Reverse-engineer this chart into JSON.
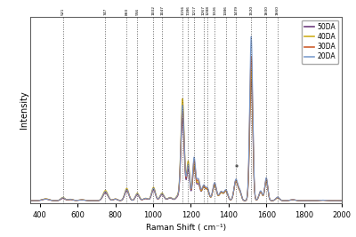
{
  "xlabel": "Raman Shift ( cm⁻¹)",
  "ylabel": "Intensity",
  "xlim": [
    350,
    2000
  ],
  "legend_labels": [
    "20DA",
    "30DA",
    "40DA",
    "50DA"
  ],
  "legend_colors": [
    "#7799cc",
    "#cc5522",
    "#ccaa11",
    "#663377"
  ],
  "dashed_lines": [
    521,
    747,
    860,
    916,
    1002,
    1047,
    1156,
    1186,
    1217,
    1267,
    1288,
    1326,
    1386,
    1439,
    1520,
    1600,
    1660
  ],
  "background_color": "#ffffff",
  "plot_bg_color": "#ffffff",
  "peak_defs": [
    [
      430,
      0.01,
      0.01,
      0.012,
      0.009,
      18
    ],
    [
      521,
      0.018,
      0.016,
      0.02,
      0.014,
      11
    ],
    [
      560,
      0.008,
      0.007,
      0.009,
      0.007,
      14
    ],
    [
      620,
      0.005,
      0.005,
      0.006,
      0.005,
      16
    ],
    [
      747,
      0.055,
      0.052,
      0.062,
      0.048,
      13
    ],
    [
      800,
      0.01,
      0.01,
      0.011,
      0.009,
      11
    ],
    [
      860,
      0.068,
      0.065,
      0.075,
      0.06,
      11
    ],
    [
      916,
      0.042,
      0.04,
      0.046,
      0.037,
      10
    ],
    [
      960,
      0.014,
      0.013,
      0.015,
      0.012,
      13
    ],
    [
      1002,
      0.075,
      0.072,
      0.082,
      0.066,
      10
    ],
    [
      1047,
      0.042,
      0.04,
      0.046,
      0.037,
      11
    ],
    [
      1090,
      0.018,
      0.017,
      0.02,
      0.016,
      13
    ],
    [
      1130,
      0.025,
      0.023,
      0.028,
      0.021,
      10
    ],
    [
      1156,
      0.58,
      0.55,
      0.62,
      0.5,
      9
    ],
    [
      1186,
      0.22,
      0.21,
      0.24,
      0.19,
      8
    ],
    [
      1217,
      0.26,
      0.24,
      0.22,
      0.2,
      8
    ],
    [
      1240,
      0.13,
      0.12,
      0.11,
      0.1,
      9
    ],
    [
      1267,
      0.09,
      0.085,
      0.08,
      0.078,
      9
    ],
    [
      1288,
      0.075,
      0.07,
      0.065,
      0.065,
      9
    ],
    [
      1326,
      0.11,
      0.105,
      0.095,
      0.092,
      10
    ],
    [
      1360,
      0.055,
      0.052,
      0.048,
      0.048,
      10
    ],
    [
      1386,
      0.065,
      0.062,
      0.058,
      0.056,
      10
    ],
    [
      1439,
      0.13,
      0.125,
      0.12,
      0.118,
      10
    ],
    [
      1460,
      0.055,
      0.052,
      0.048,
      0.046,
      8
    ],
    [
      1520,
      1.0,
      0.88,
      0.8,
      0.74,
      8
    ],
    [
      1570,
      0.06,
      0.057,
      0.053,
      0.052,
      9
    ],
    [
      1600,
      0.14,
      0.135,
      0.125,
      0.12,
      8
    ],
    [
      1660,
      0.022,
      0.02,
      0.018,
      0.018,
      10
    ],
    [
      1740,
      0.006,
      0.006,
      0.005,
      0.005,
      14
    ],
    [
      1900,
      0.003,
      0.003,
      0.003,
      0.003,
      18
    ]
  ]
}
